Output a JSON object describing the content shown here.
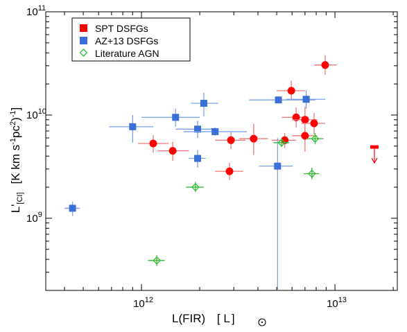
{
  "chart_data": {
    "type": "scatter",
    "xlabel": {
      "main": "L(FIR)",
      "unit": "[ L",
      "unit_close": "]"
    },
    "ylabel": {
      "main": "L'",
      "sub": "[CI]",
      "unit": "[K km s",
      "exp1": "-1",
      "mid": "pc",
      "exp2": "2",
      "close": ")",
      "exp3": "-1",
      "end": "]"
    },
    "x_scale": "log",
    "y_scale": "log",
    "xlim": [
      320000000000.0,
      21000000000000.0
    ],
    "ylim": [
      200000000.0,
      100000000000.0
    ],
    "x_ticks": [
      {
        "value": 1000000000000.0,
        "base": "10",
        "exp": "12"
      },
      {
        "value": 10000000000000.0,
        "base": "10",
        "exp": "13"
      }
    ],
    "y_ticks": [
      {
        "value": 1000000000.0,
        "base": "10",
        "exp": "9"
      },
      {
        "value": 10000000000.0,
        "base": "10",
        "exp": "10"
      },
      {
        "value": 100000000000.0,
        "base": "10",
        "exp": "11"
      }
    ],
    "legend": {
      "position": "top-left",
      "entries": [
        {
          "label": "SPT DSFGs",
          "marker": "circle",
          "color": "#ff0000"
        },
        {
          "label": "AZ+13 DSFGs",
          "marker": "square",
          "color": "#3a6fd8"
        },
        {
          "label": "Literature AGN",
          "marker": "diamond",
          "color": "#33bb33"
        }
      ]
    },
    "series": [
      {
        "name": "SPT DSFGs",
        "marker": "circle",
        "color": "#ff0000",
        "errcolor": "#ee7777",
        "points": [
          {
            "x": 1150000000000.0,
            "y": 5300000000.0,
            "xlo": 960000000000.0,
            "xhi": 1380000000000.0,
            "ylo": 4300000000.0,
            "yhi": 6400000000.0
          },
          {
            "x": 1450000000000.0,
            "y": 4500000000.0,
            "xlo": 1210000000000.0,
            "xhi": 1760000000000.0,
            "ylo": 3600000000.0,
            "yhi": 5500000000.0
          },
          {
            "x": 2900000000000.0,
            "y": 5700000000.0,
            "xlo": 2400000000000.0,
            "xhi": 3450000000000.0,
            "ylo": 4700000000.0,
            "yhi": 6800000000.0
          },
          {
            "x": 2850000000000.0,
            "y": 2850000000.0,
            "xlo": 2400000000000.0,
            "xhi": 3350000000000.0,
            "ylo": 2350000000.0,
            "yhi": 3450000000.0
          },
          {
            "x": 3800000000000.0,
            "y": 5900000000.0,
            "xlo": 3200000000000.0,
            "xhi": 4500000000000.0,
            "ylo": 4100000000.0,
            "yhi": 8200000000.0
          },
          {
            "x": 5500000000000.0,
            "y": 5700000000.0,
            "xlo": 4700000000000.0,
            "xhi": 6300000000000.0,
            "ylo": 4800000000.0,
            "yhi": 6700000000.0
          },
          {
            "x": 5950000000000.0,
            "y": 17200000000.0,
            "xlo": 5000000000000.0,
            "xhi": 7000000000000.0,
            "ylo": 13800000000.0,
            "yhi": 21500000000.0
          },
          {
            "x": 6300000000000.0,
            "y": 9500000000.0,
            "xlo": 5300000000000.0,
            "xhi": 7300000000000.0,
            "ylo": 7600000000.0,
            "yhi": 11800000000.0
          },
          {
            "x": 7000000000000.0,
            "y": 9000000000.0,
            "xlo": 6000000000000.0,
            "xhi": 8100000000000.0,
            "ylo": 6300000000.0,
            "yhi": 12000000000.0
          },
          {
            "x": 7000000000000.0,
            "y": 6300000000.0,
            "xlo": 6000000000000.0,
            "xhi": 8100000000000.0,
            "ylo": 4400000000.0,
            "yhi": 8200000000.0
          },
          {
            "x": 7800000000000.0,
            "y": 8300000000.0,
            "xlo": 6700000000000.0,
            "xhi": 8900000000000.0,
            "ylo": 6500000000.0,
            "yhi": 10500000000.0
          },
          {
            "x": 8900000000000.0,
            "y": 30500000000.0,
            "xlo": 7800000000000.0,
            "xhi": 10200000000000.0,
            "ylo": 24500000000.0,
            "yhi": 38000000000.0
          }
        ]
      },
      {
        "name": "AZ+13 DSFGs",
        "marker": "square",
        "color": "#3a6fd8",
        "errcolor": "#7aa0e6",
        "points": [
          {
            "x": 440000000000.0,
            "y": 1250000000.0,
            "xlo": 400000000000.0,
            "xhi": 480000000000.0,
            "ylo": 1050000000.0,
            "yhi": 1450000000.0
          },
          {
            "x": 900000000000.0,
            "y": 7700000000.0,
            "xlo": 680000000000.0,
            "xhi": 1150000000000.0,
            "ylo": 5400000000.0,
            "yhi": 10000000000.0
          },
          {
            "x": 1500000000000.0,
            "y": 9500000000.0,
            "xlo": 1000000000000.0,
            "xhi": 2000000000000.0,
            "ylo": 7700000000.0,
            "yhi": 11500000000.0
          },
          {
            "x": 1950000000000.0,
            "y": 7300000000.0,
            "xlo": 1500000000000.0,
            "xhi": 2500000000000.0,
            "ylo": 6000000000.0,
            "yhi": 8800000000.0
          },
          {
            "x": 2100000000000.0,
            "y": 13000000000.0,
            "xlo": 1800000000000.0,
            "xhi": 2500000000000.0,
            "ylo": 9700000000.0,
            "yhi": 16500000000.0
          },
          {
            "x": 2400000000000.0,
            "y": 6900000000.0,
            "xlo": 1650000000000.0,
            "xhi": 3500000000000.0,
            "ylo": 6300000000.0,
            "yhi": 7600000000.0
          },
          {
            "x": 1950000000000.0,
            "y": 3800000000.0,
            "xlo": 1750000000000.0,
            "xhi": 2150000000000.0,
            "ylo": 3100000000.0,
            "yhi": 4600000000.0
          },
          {
            "x": 5100000000000.0,
            "y": 14000000000.0,
            "xlo": 3600000000000.0,
            "xhi": 7900000000000.0,
            "ylo": 13200000000.0,
            "yhi": 15000000000.0
          },
          {
            "x": 7100000000000.0,
            "y": 14200000000.0,
            "xlo": 5600000000000.0,
            "xhi": 8900000000000.0,
            "ylo": 11500000000.0,
            "yhi": 17500000000.0
          },
          {
            "x": 5050000000000.0,
            "y": 3200000000.0,
            "xlo": 4050000000000.0,
            "xhi": 6050000000000.0,
            "ylo": 200000000.0,
            "yhi": 6000000000.0
          }
        ]
      },
      {
        "name": "Literature AGN",
        "marker": "diamond",
        "color": "#33bb33",
        "errcolor": "#33bb33",
        "points": [
          {
            "x": 1200000000000.0,
            "y": 390000000.0,
            "xlo": 1080000000000.0,
            "xhi": 1320000000000.0,
            "ylo": 345000000.0,
            "yhi": 440000000.0
          },
          {
            "x": 1900000000000.0,
            "y": 2000000000.0,
            "xlo": 1700000000000.0,
            "xhi": 2100000000000.0,
            "ylo": 1800000000.0,
            "yhi": 2250000000.0
          },
          {
            "x": 5300000000000.0,
            "y": 5400000000.0,
            "xlo": 4800000000000.0,
            "xhi": 5800000000000.0,
            "ylo": 4900000000.0,
            "yhi": 5900000000.0
          },
          {
            "x": 7600000000000.0,
            "y": 2700000000.0,
            "xlo": 6900000000000.0,
            "xhi": 8300000000000.0,
            "ylo": 2400000000.0,
            "yhi": 3100000000.0
          },
          {
            "x": 7900000000000.0,
            "y": 5900000000.0,
            "xlo": 7100000000000.0,
            "xhi": 8700000000000.0,
            "ylo": 5200000000.0,
            "yhi": 6700000000.0
          }
        ]
      }
    ],
    "upper_limits": [
      {
        "series": "SPT DSFGs",
        "x": 16000000000000.0,
        "y": 4900000000.0,
        "color": "#ff0000"
      }
    ]
  }
}
